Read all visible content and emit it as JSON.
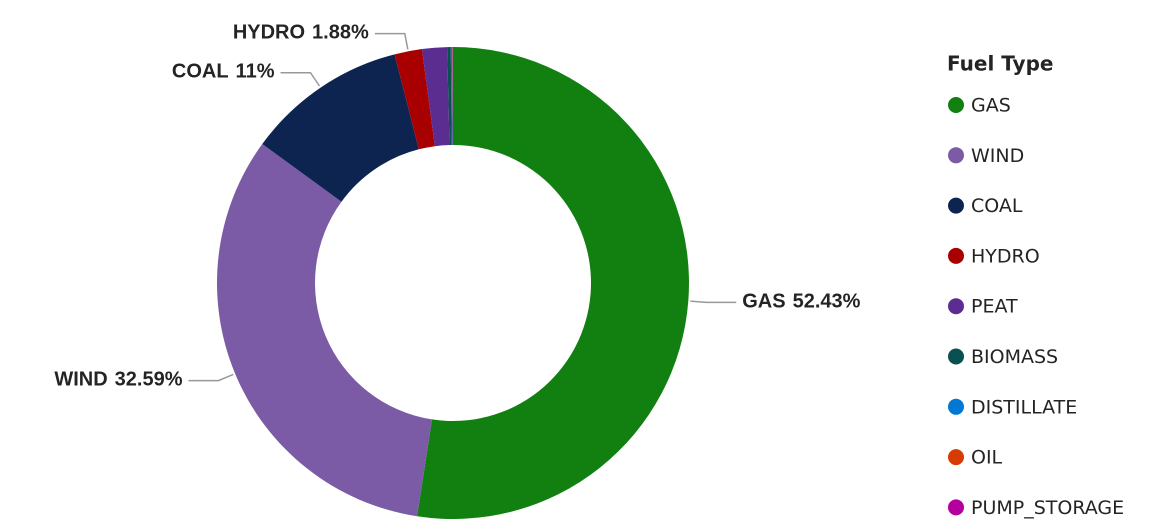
{
  "chart_data": {
    "type": "donut",
    "legend_title": "Fuel Type",
    "categories": [
      "GAS",
      "WIND",
      "COAL",
      "HYDRO",
      "PEAT",
      "BIOMASS",
      "DISTILLATE",
      "OIL",
      "PUMP_STORAGE"
    ],
    "values": [
      52.43,
      32.59,
      11,
      1.88,
      1.7,
      0.25,
      0.1,
      0.03,
      0.02
    ],
    "value_labels": [
      "52.43%",
      "32.59%",
      "11%",
      "1.88%",
      null,
      null,
      null,
      null,
      null
    ],
    "colors": [
      "#118011",
      "#7b5aa6",
      "#0d2451",
      "#a80000",
      "#5c2d91",
      "#0b5050",
      "#0078d4",
      "#d83b01",
      "#b4009e"
    ],
    "legend_position": "right"
  }
}
